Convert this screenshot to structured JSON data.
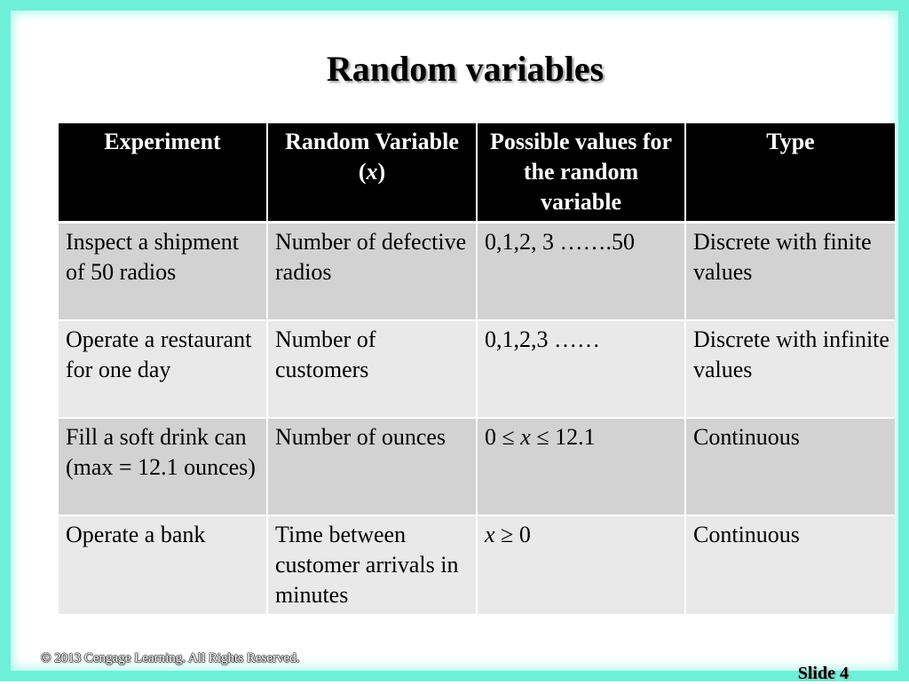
{
  "slide": {
    "title": "Random variables",
    "copyright": "© 2013  Cengage Learning.  All Rights Reserved.",
    "slide_number": "Slide 4",
    "frame_color": "#6ff0d8"
  },
  "table": {
    "headers": [
      "Experiment",
      "Random Variable  (x)",
      "Possible values for the random variable",
      "Type"
    ],
    "rows": [
      [
        "Inspect a shipment of 50 radios",
        "Number of defective radios",
        "0,1,2, 3 …….50",
        "Discrete with finite values"
      ],
      [
        "Operate a restaurant for one day",
        "Number of customers",
        "0,1,2,3 ……",
        "Discrete with infinite values"
      ],
      [
        "Fill a soft drink can (max = 12.1 ounces)",
        "Number of ounces",
        "0 ≤ x ≤ 12.1",
        "Continuous"
      ],
      [
        "Operate a bank",
        "Time between customer arrivals in minutes",
        "x ≥ 0",
        "Continuous"
      ]
    ]
  }
}
